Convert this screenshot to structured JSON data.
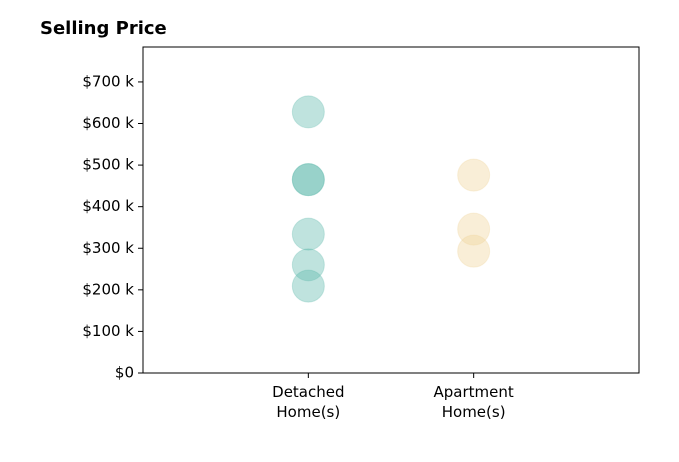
{
  "chart_data": {
    "type": "strip",
    "title": "Selling Price",
    "categories": [
      "Detached\nHome(s)",
      "Apartment\nHome(s)"
    ],
    "values": [
      [
        628,
        465,
        465,
        334,
        260,
        209
      ],
      [
        476,
        346,
        293
      ]
    ],
    "colors": [
      "#5fb8ad",
      "#f0d49a"
    ],
    "ylim": [
      0,
      784
    ],
    "yticks": [
      {
        "value": 0,
        "label": "$0"
      },
      {
        "value": 100,
        "label": "$100 k"
      },
      {
        "value": 200,
        "label": "$200 k"
      },
      {
        "value": 300,
        "label": "$300 k"
      },
      {
        "value": 400,
        "label": "$400 k"
      },
      {
        "value": 500,
        "label": "$500 k"
      },
      {
        "value": 600,
        "label": "$600 k"
      },
      {
        "value": 700,
        "label": "$700 k"
      }
    ],
    "grid": false
  }
}
